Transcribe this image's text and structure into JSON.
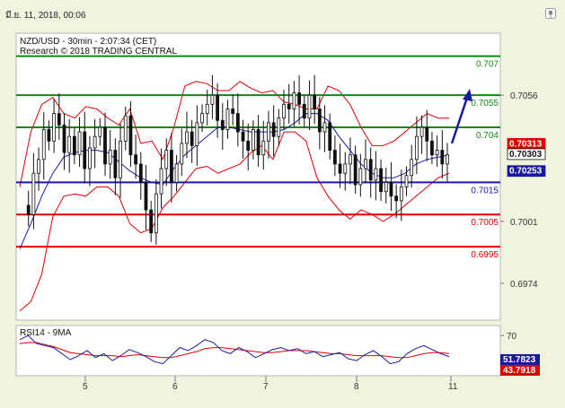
{
  "header": {
    "timestamp": "มี.ย. 11, 2018, 00:06"
  },
  "colors": {
    "background": "#ffffff",
    "frame": "#f0f3de",
    "candles": "#111111",
    "bollinger": "#e00000",
    "moving_average": "#1a1aa0",
    "resistance": "#118811",
    "pivot": "#1a1aa0",
    "support": "#e00000",
    "arrow": "#1a1aa0",
    "rsi_line": "#1a1aa0",
    "rsi_ma": "#e00000",
    "price_badge_bid": "#e00000",
    "price_badge_last": "#ffffff",
    "price_badge_ask": "#1a1aa0"
  },
  "chart_data": {
    "type": "candlestick",
    "title": "NZD/USD - 30min - 2:07:34 (CET)",
    "subtitle": "Research © 2018 TRADING CENTRAL",
    "ylim": [
      0.6958,
      0.7083
    ],
    "x_ticks": [
      "5",
      "6",
      "7",
      "8",
      "11"
    ],
    "y_ticks": [
      "0.7056",
      "0.7001",
      "0.6974"
    ],
    "grid": false,
    "levels": [
      {
        "label": "0.707",
        "value": 0.7073,
        "type": "resistance"
      },
      {
        "label": "0.7055",
        "value": 0.7056,
        "type": "resistance"
      },
      {
        "label": "0.704",
        "value": 0.7042,
        "type": "resistance"
      },
      {
        "label": "0.7015",
        "value": 0.7018,
        "type": "pivot"
      },
      {
        "label": "0.7005",
        "value": 0.7004,
        "type": "support"
      },
      {
        "label": "0.6995",
        "value": 0.699,
        "type": "support"
      }
    ],
    "price_badges": [
      {
        "label": "0.70313",
        "value": 0.70313,
        "kind": "bid"
      },
      {
        "label": "0.70303",
        "value": 0.70303,
        "kind": "last"
      },
      {
        "label": "0.70253",
        "value": 0.70253,
        "kind": "ask"
      }
    ],
    "close_path": [
      0.7008,
      0.7004,
      0.7022,
      0.7028,
      0.7041,
      0.7036,
      0.7048,
      0.7043,
      0.7031,
      0.7038,
      0.703,
      0.704,
      0.7024,
      0.7033,
      0.7038,
      0.7042,
      0.7026,
      0.7032,
      0.702,
      0.7036,
      0.7047,
      0.703,
      0.7026,
      0.7018,
      0.7006,
      0.6996,
      0.7013,
      0.7024,
      0.7032,
      0.7018,
      0.7026,
      0.7035,
      0.704,
      0.7034,
      0.7044,
      0.7048,
      0.7052,
      0.7056,
      0.7045,
      0.7041,
      0.705,
      0.7048,
      0.704,
      0.7036,
      0.7032,
      0.7041,
      0.703,
      0.7036,
      0.7044,
      0.7038,
      0.7046,
      0.7052,
      0.705,
      0.7057,
      0.7052,
      0.7046,
      0.7056,
      0.705,
      0.704,
      0.7044,
      0.7032,
      0.7026,
      0.7022,
      0.7026,
      0.703,
      0.7017,
      0.7024,
      0.7028,
      0.7019,
      0.7024,
      0.7014,
      0.7018,
      0.7012,
      0.701,
      0.7016,
      0.7021,
      0.7028,
      0.7038,
      0.7042,
      0.7036,
      0.703,
      0.7032,
      0.7026,
      0.703
    ],
    "bb_upper": [
      0.7016,
      0.704,
      0.7052,
      0.7055,
      0.7048,
      0.7046,
      0.7051,
      0.705,
      0.7046,
      0.7043,
      0.705,
      0.7035,
      0.7036,
      0.7028,
      0.7042,
      0.706,
      0.7062,
      0.7061,
      0.7058,
      0.7058,
      0.7062,
      0.7059,
      0.7057,
      0.7058,
      0.7053,
      0.7052,
      0.705,
      0.705,
      0.706,
      0.7058,
      0.7052,
      0.7042,
      0.7034,
      0.7034,
      0.7036,
      0.704,
      0.7044,
      0.7048,
      0.7046,
      0.7046
    ],
    "bb_lower": [
      0.6962,
      0.6966,
      0.6978,
      0.7003,
      0.7012,
      0.7013,
      0.7012,
      0.7016,
      0.7016,
      0.7012,
      0.7,
      0.6996,
      0.6998,
      0.7007,
      0.7012,
      0.7018,
      0.7024,
      0.7025,
      0.7022,
      0.7024,
      0.7026,
      0.7031,
      0.7034,
      0.7028,
      0.704,
      0.704,
      0.7036,
      0.702,
      0.7012,
      0.7006,
      0.7002,
      0.7006,
      0.7004,
      0.7001,
      0.7004,
      0.7008,
      0.7012,
      0.7016,
      0.702,
      0.7022
    ],
    "moving_average": [
      0.6989,
      0.7,
      0.7012,
      0.7022,
      0.7029,
      0.7031,
      0.7032,
      0.7032,
      0.7031,
      0.7027,
      0.7023,
      0.702,
      0.7018,
      0.7017,
      0.7024,
      0.703,
      0.7034,
      0.7038,
      0.7042,
      0.7042,
      0.7041,
      0.704,
      0.704,
      0.704,
      0.7041,
      0.7044,
      0.7048,
      0.7048,
      0.7045,
      0.7038,
      0.7032,
      0.7026,
      0.7022,
      0.702,
      0.702,
      0.7022,
      0.7026,
      0.7028,
      0.7029,
      0.703
    ],
    "forecast": {
      "from": 0.7035,
      "to": 0.7058
    },
    "rsi": {
      "title": "RSI14 - 9MA",
      "ylim": [
        30,
        80
      ],
      "y_ticks": [
        "70"
      ],
      "badges": [
        {
          "label": "51.7823",
          "value": 51.7823,
          "kind": "rsi"
        },
        {
          "label": "43.7918",
          "value": 43.7918,
          "kind": "ma"
        }
      ],
      "rsi_path": [
        66,
        70,
        62,
        60,
        58,
        52,
        46,
        50,
        55,
        48,
        52,
        45,
        50,
        56,
        53,
        49,
        44,
        42,
        50,
        58,
        55,
        60,
        66,
        63,
        55,
        52,
        58,
        54,
        48,
        52,
        56,
        58,
        55,
        57,
        52,
        54,
        49,
        51,
        53,
        47,
        45,
        51,
        55,
        49,
        42,
        44,
        52,
        57,
        60,
        56,
        52,
        49
      ],
      "ma_path": [
        62,
        63,
        63,
        61,
        59,
        56,
        53,
        52,
        51,
        50,
        50,
        50,
        49,
        50,
        51,
        50,
        49,
        48,
        48,
        50,
        52,
        54,
        57,
        58,
        58,
        57,
        56,
        55,
        54,
        53,
        53,
        54,
        55,
        55,
        55,
        54,
        53,
        52,
        52,
        51,
        50,
        50,
        50,
        50,
        49,
        48,
        48,
        50,
        52,
        53,
        53,
        52
      ]
    }
  }
}
